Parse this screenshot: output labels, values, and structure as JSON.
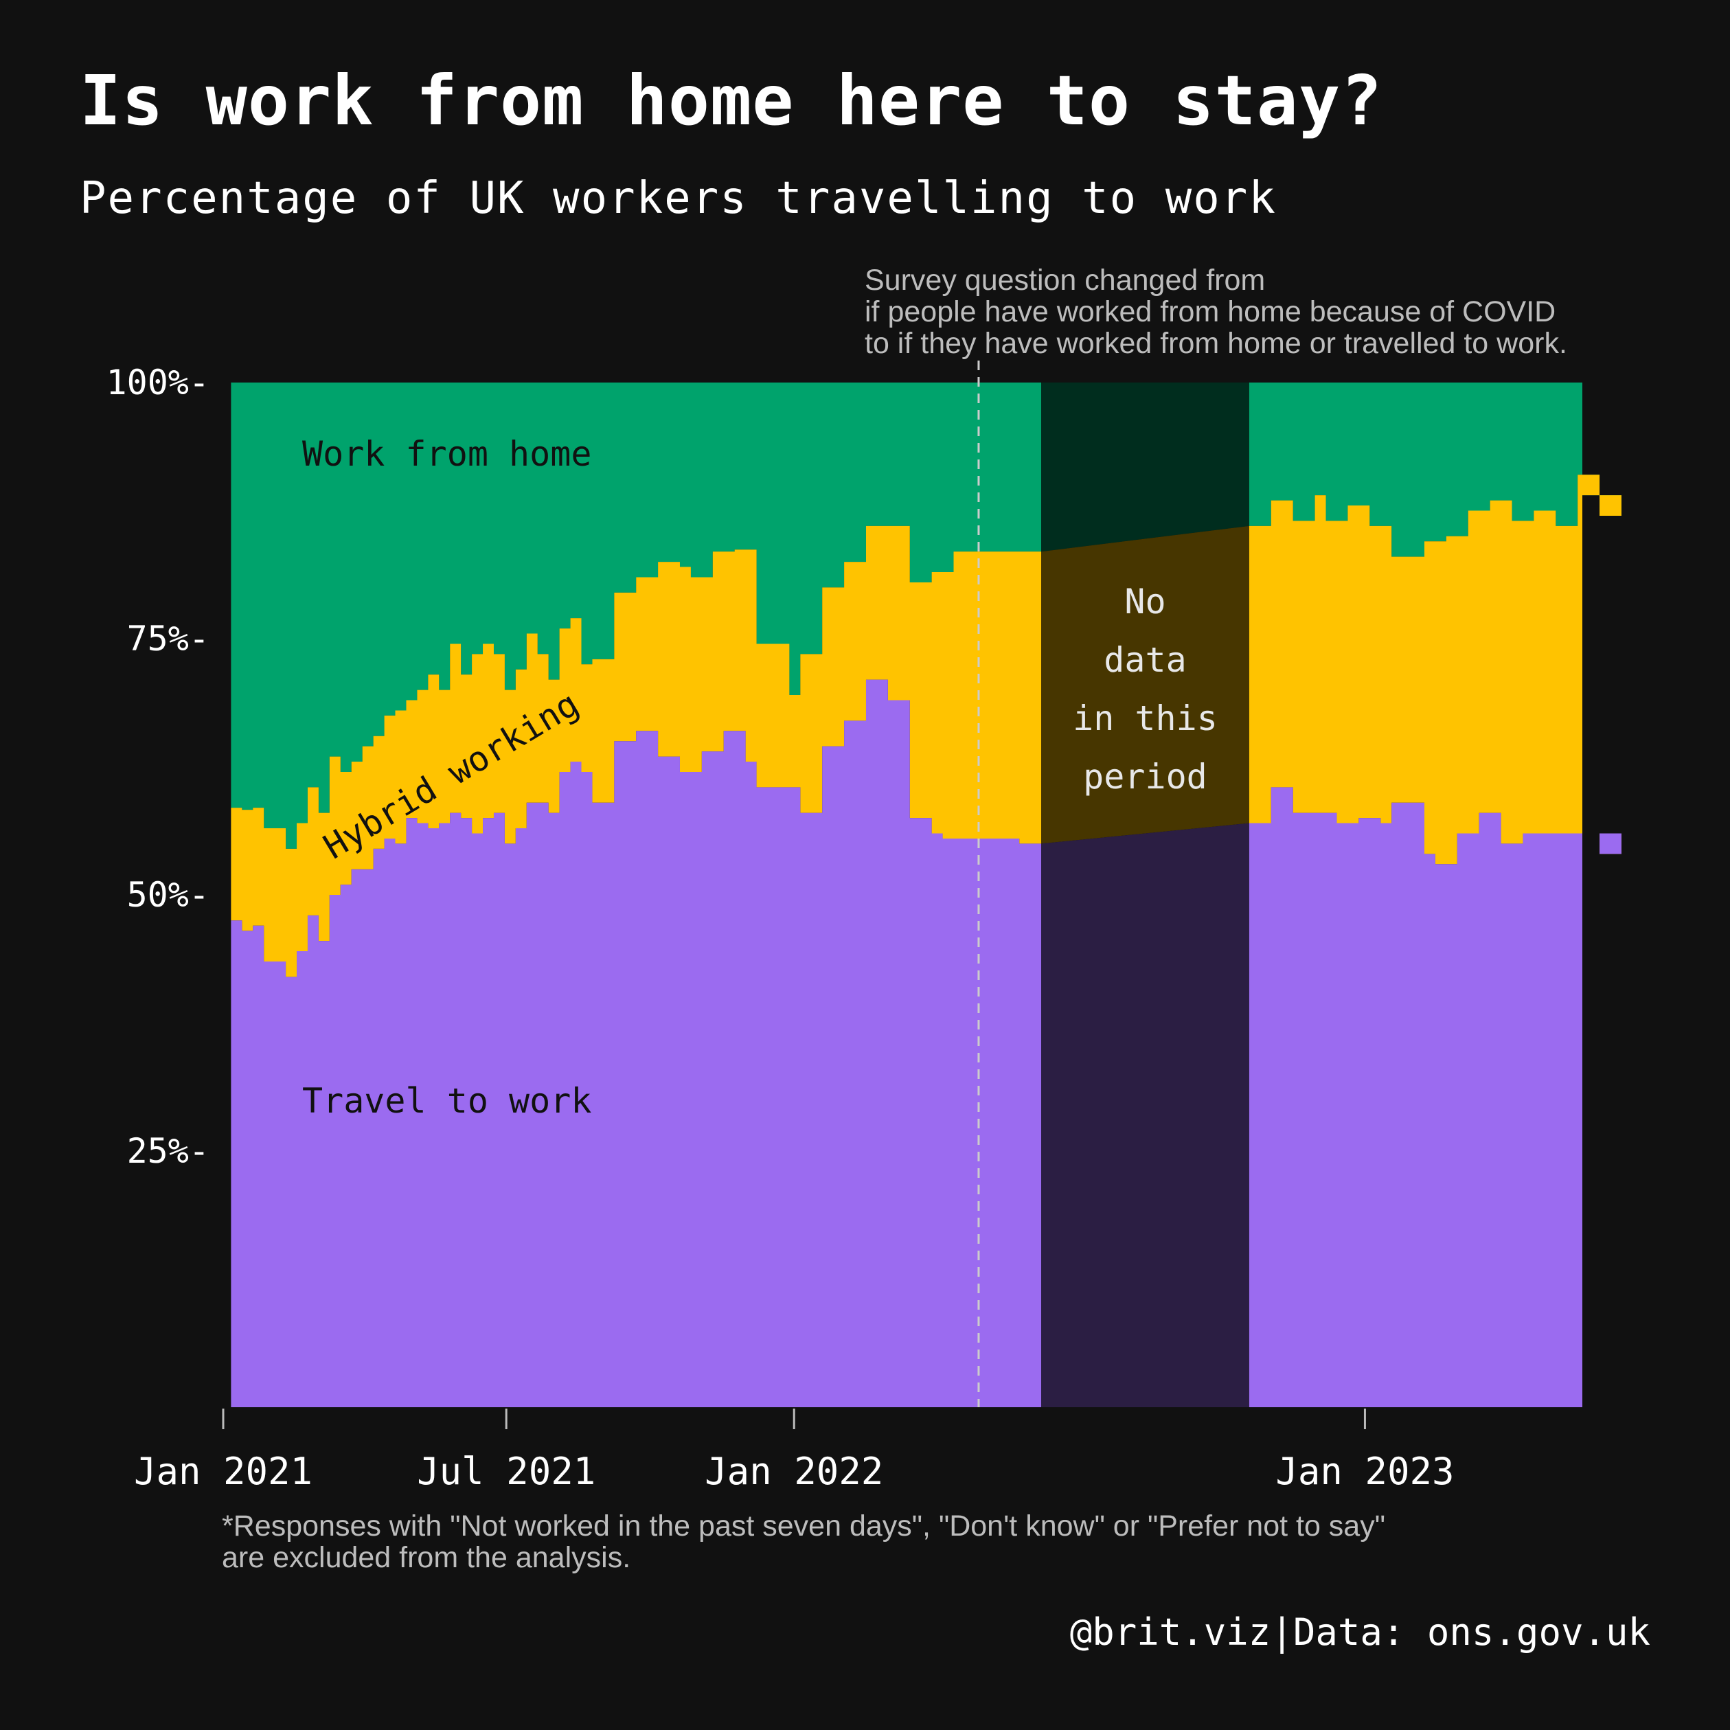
{
  "title": "Is work from home here to stay?",
  "subtitle": "Percentage of UK workers travelling to work",
  "survey_note": [
    "Survey question changed from",
    "if people have worked from home because of COVID",
    "to if they have worked from home or travelled to work."
  ],
  "footnote": [
    "*Responses with \"Not worked in the past seven days\", \"Don't know\" or \"Prefer not to say\"",
    "are excluded from the analysis."
  ],
  "credit": "@brit.viz|Data: ons.gov.uk",
  "colors": {
    "background": "#111111",
    "travel": "#9b6bf0",
    "hybrid": "#ffc300",
    "wfh": "#00a36c",
    "nodata_shade": "#000000"
  },
  "chart_data": {
    "type": "area",
    "stacked": true,
    "x_type": "date",
    "xlim": [
      "2021-01-01",
      "2023-05-20"
    ],
    "ylim": [
      0,
      100
    ],
    "x_ticks": [
      {
        "date": "2021-01-01",
        "label": "Jan 2021"
      },
      {
        "date": "2021-07-01",
        "label": "Jul 2021"
      },
      {
        "date": "2022-01-01",
        "label": "Jan 2022"
      },
      {
        "date": "2023-01-01",
        "label": "Jan 2023"
      }
    ],
    "y_ticks": [
      {
        "value": 25,
        "label": "25%-"
      },
      {
        "value": 50,
        "label": "50%-"
      },
      {
        "value": 75,
        "label": "75%-"
      },
      {
        "value": 100,
        "label": "100%-"
      }
    ],
    "series_labels": {
      "wfh": "Work from home",
      "hybrid": "Hybrid working",
      "travel": "Travel to work"
    },
    "gap_label": [
      "No",
      "data",
      "in this",
      "period"
    ],
    "gap": [
      "2022-06-08",
      "2022-10-19"
    ],
    "question_change_date": "2022-04-29",
    "data": [
      {
        "date": "2021-01-06",
        "travel": 47.5,
        "top": 58.5
      },
      {
        "date": "2021-01-13",
        "travel": 46.5,
        "top": 58.3
      },
      {
        "date": "2021-01-20",
        "travel": 47.0,
        "top": 58.5
      },
      {
        "date": "2021-01-27",
        "travel": 43.5,
        "top": 56.5
      },
      {
        "date": "2021-02-03",
        "travel": 43.5,
        "top": 56.5
      },
      {
        "date": "2021-02-10",
        "travel": 42.0,
        "top": 54.5
      },
      {
        "date": "2021-02-17",
        "travel": 44.5,
        "top": 57.0
      },
      {
        "date": "2021-02-24",
        "travel": 48.0,
        "top": 60.5
      },
      {
        "date": "2021-03-03",
        "travel": 45.5,
        "top": 58.0
      },
      {
        "date": "2021-03-10",
        "travel": 50.0,
        "top": 63.5
      },
      {
        "date": "2021-03-17",
        "travel": 51.0,
        "top": 62.0
      },
      {
        "date": "2021-03-24",
        "travel": 52.5,
        "top": 63.0
      },
      {
        "date": "2021-03-31",
        "travel": 52.5,
        "top": 64.5
      },
      {
        "date": "2021-04-07",
        "travel": 54.5,
        "top": 65.5
      },
      {
        "date": "2021-04-14",
        "travel": 55.5,
        "top": 67.5
      },
      {
        "date": "2021-04-21",
        "travel": 55.0,
        "top": 68.0
      },
      {
        "date": "2021-04-28",
        "travel": 57.5,
        "top": 69.0
      },
      {
        "date": "2021-05-05",
        "travel": 57.0,
        "top": 70.0
      },
      {
        "date": "2021-05-12",
        "travel": 56.5,
        "top": 71.5
      },
      {
        "date": "2021-05-19",
        "travel": 57.0,
        "top": 70.0
      },
      {
        "date": "2021-05-26",
        "travel": 58.0,
        "top": 74.5
      },
      {
        "date": "2021-06-02",
        "travel": 57.5,
        "top": 71.5
      },
      {
        "date": "2021-06-09",
        "travel": 56.0,
        "top": 73.5
      },
      {
        "date": "2021-06-16",
        "travel": 57.5,
        "top": 74.5
      },
      {
        "date": "2021-06-23",
        "travel": 58.0,
        "top": 73.5
      },
      {
        "date": "2021-06-30",
        "travel": 55.0,
        "top": 70.0
      },
      {
        "date": "2021-07-07",
        "travel": 56.5,
        "top": 72.0
      },
      {
        "date": "2021-07-14",
        "travel": 59.0,
        "top": 75.5
      },
      {
        "date": "2021-07-21",
        "travel": 59.0,
        "top": 73.5
      },
      {
        "date": "2021-07-28",
        "travel": 58.0,
        "top": 71.0
      },
      {
        "date": "2021-08-04",
        "travel": 62.0,
        "top": 76.0
      },
      {
        "date": "2021-08-11",
        "travel": 63.0,
        "top": 77.0
      },
      {
        "date": "2021-08-18",
        "travel": 62.0,
        "top": 72.5
      },
      {
        "date": "2021-08-25",
        "travel": 59.0,
        "top": 73.0
      },
      {
        "date": "2021-09-01",
        "travel": 59.0,
        "top": 73.0
      },
      {
        "date": "2021-09-08",
        "travel": 65.0,
        "top": 79.5
      },
      {
        "date": "2021-09-15",
        "travel": 65.0,
        "top": 79.5
      },
      {
        "date": "2021-09-22",
        "travel": 66.0,
        "top": 81.0
      },
      {
        "date": "2021-09-29",
        "travel": 66.0,
        "top": 81.0
      },
      {
        "date": "2021-10-06",
        "travel": 63.5,
        "top": 82.5
      },
      {
        "date": "2021-10-13",
        "travel": 63.5,
        "top": 82.5
      },
      {
        "date": "2021-10-20",
        "travel": 62.0,
        "top": 82.0
      },
      {
        "date": "2021-10-27",
        "travel": 62.0,
        "top": 81.0
      },
      {
        "date": "2021-11-03",
        "travel": 64.0,
        "top": 81.0
      },
      {
        "date": "2021-11-10",
        "travel": 64.0,
        "top": 83.5
      },
      {
        "date": "2021-11-17",
        "travel": 66.0,
        "top": 83.5
      },
      {
        "date": "2021-11-24",
        "travel": 66.0,
        "top": 83.7
      },
      {
        "date": "2021-12-01",
        "travel": 63.0,
        "top": 83.7
      },
      {
        "date": "2021-12-08",
        "travel": 60.5,
        "top": 74.5
      },
      {
        "date": "2021-12-15",
        "travel": 60.5,
        "top": 74.5
      },
      {
        "date": "2021-12-22",
        "travel": 60.5,
        "top": 74.5
      },
      {
        "date": "2021-12-29",
        "travel": 60.5,
        "top": 69.5
      },
      {
        "date": "2022-01-05",
        "travel": 58.0,
        "top": 73.5
      },
      {
        "date": "2022-01-12",
        "travel": 58.0,
        "top": 73.5
      },
      {
        "date": "2022-01-19",
        "travel": 64.5,
        "top": 80.0
      },
      {
        "date": "2022-01-26",
        "travel": 64.5,
        "top": 80.0
      },
      {
        "date": "2022-02-02",
        "travel": 67.0,
        "top": 82.5
      },
      {
        "date": "2022-02-09",
        "travel": 67.0,
        "top": 82.5
      },
      {
        "date": "2022-02-16",
        "travel": 71.0,
        "top": 86.0
      },
      {
        "date": "2022-02-23",
        "travel": 71.0,
        "top": 86.0
      },
      {
        "date": "2022-03-02",
        "travel": 69.0,
        "top": 86.0
      },
      {
        "date": "2022-03-09",
        "travel": 69.0,
        "top": 86.0
      },
      {
        "date": "2022-03-16",
        "travel": 57.5,
        "top": 80.5
      },
      {
        "date": "2022-03-23",
        "travel": 57.5,
        "top": 80.5
      },
      {
        "date": "2022-03-30",
        "travel": 56.0,
        "top": 81.5
      },
      {
        "date": "2022-04-06",
        "travel": 55.5,
        "top": 81.5
      },
      {
        "date": "2022-04-13",
        "travel": 55.5,
        "top": 83.5
      },
      {
        "date": "2022-05-25",
        "travel": 55.0,
        "top": 83.5
      },
      {
        "date": "2022-06-08",
        "travel": 55.0,
        "top": 83.5
      },
      {
        "date": "2022-10-19",
        "travel": 57.0,
        "top": 86.0
      },
      {
        "date": "2022-10-26",
        "travel": 57.0,
        "top": 86.0
      },
      {
        "date": "2022-11-02",
        "travel": 60.5,
        "top": 88.5
      },
      {
        "date": "2022-11-09",
        "travel": 60.5,
        "top": 88.5
      },
      {
        "date": "2022-11-16",
        "travel": 58.0,
        "top": 86.5
      },
      {
        "date": "2022-11-23",
        "travel": 58.0,
        "top": 86.5
      },
      {
        "date": "2022-11-30",
        "travel": 58.0,
        "top": 89.0
      },
      {
        "date": "2022-12-07",
        "travel": 58.0,
        "top": 86.5
      },
      {
        "date": "2022-12-14",
        "travel": 57.0,
        "top": 86.5
      },
      {
        "date": "2022-12-21",
        "travel": 57.0,
        "top": 88.0
      },
      {
        "date": "2022-12-28",
        "travel": 57.5,
        "top": 88.0
      },
      {
        "date": "2023-01-04",
        "travel": 57.5,
        "top": 86.0
      },
      {
        "date": "2023-01-11",
        "travel": 57.0,
        "top": 86.0
      },
      {
        "date": "2023-01-18",
        "travel": 59.0,
        "top": 83.0
      },
      {
        "date": "2023-01-25",
        "travel": 59.0,
        "top": 83.0
      },
      {
        "date": "2023-02-01",
        "travel": 59.0,
        "top": 83.0
      },
      {
        "date": "2023-02-08",
        "travel": 54.0,
        "top": 84.5
      },
      {
        "date": "2023-02-15",
        "travel": 53.0,
        "top": 84.5
      },
      {
        "date": "2023-02-22",
        "travel": 53.0,
        "top": 85.0
      },
      {
        "date": "2023-03-01",
        "travel": 56.0,
        "top": 85.0
      },
      {
        "date": "2023-03-08",
        "travel": 56.0,
        "top": 87.5
      },
      {
        "date": "2023-03-15",
        "travel": 58.0,
        "top": 87.5
      },
      {
        "date": "2023-03-22",
        "travel": 58.0,
        "top": 88.5
      },
      {
        "date": "2023-03-29",
        "travel": 55.0,
        "top": 88.5
      },
      {
        "date": "2023-04-05",
        "travel": 55.0,
        "top": 86.5
      },
      {
        "date": "2023-04-12",
        "travel": 56.0,
        "top": 86.5
      },
      {
        "date": "2023-04-19",
        "travel": 56.0,
        "top": 87.5
      },
      {
        "date": "2023-04-26",
        "travel": 56.0,
        "top": 87.5
      },
      {
        "date": "2023-05-03",
        "travel": 56.0,
        "top": 86.0
      },
      {
        "date": "2023-05-10",
        "travel": 56.0,
        "top": 86.0
      },
      {
        "date": "2023-05-17",
        "travel": 56.0,
        "top": 91.0
      },
      {
        "date": "2023-05-24",
        "travel": 56.0,
        "top": 91.0
      },
      {
        "date": "2023-05-31",
        "travel": 54.0,
        "top": 87.0
      },
      {
        "date": "2023-06-07",
        "travel": 54.0,
        "top": 87.0
      },
      {
        "date": "2023-06-14",
        "travel": 56.0,
        "top": 89.0
      },
      {
        "date": "2023-06-21",
        "travel": 56.0,
        "top": 89.0
      }
    ]
  }
}
